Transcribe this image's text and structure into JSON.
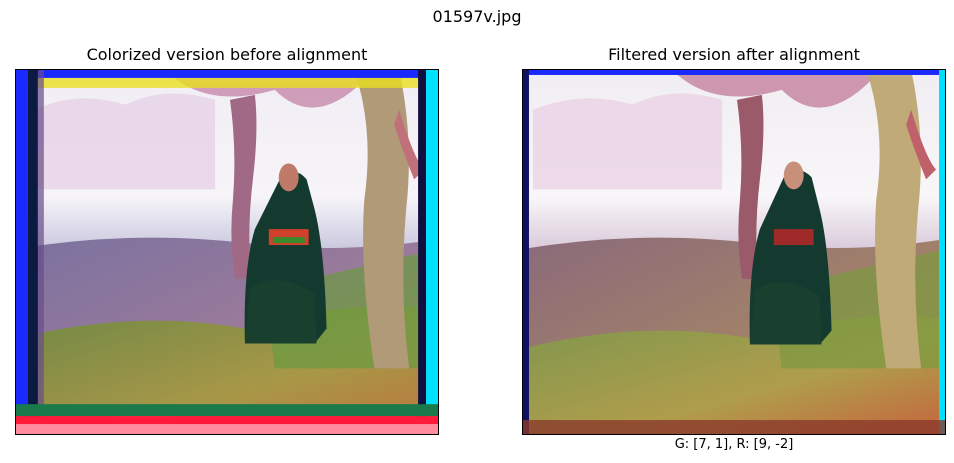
{
  "figure": {
    "suptitle": "01597v.jpg"
  },
  "panels": [
    {
      "title": "Colorized version before alignment",
      "xlabel": ""
    },
    {
      "title": "Filtered version after alignment",
      "xlabel": "G: [7, 1], R: [9, -2]"
    }
  ],
  "colors": {
    "sky": "#f4f2f6",
    "grass": "#8a9a3c",
    "ground": "#7a6a8a",
    "tree": "#9a6a7a",
    "robe": "#143a30",
    "border_red": "#ff1a3a",
    "border_green": "#1a7a4a",
    "border_blue": "#1a2aff",
    "border_cyan": "#00e0ff",
    "border_yellow": "#e8e020"
  }
}
